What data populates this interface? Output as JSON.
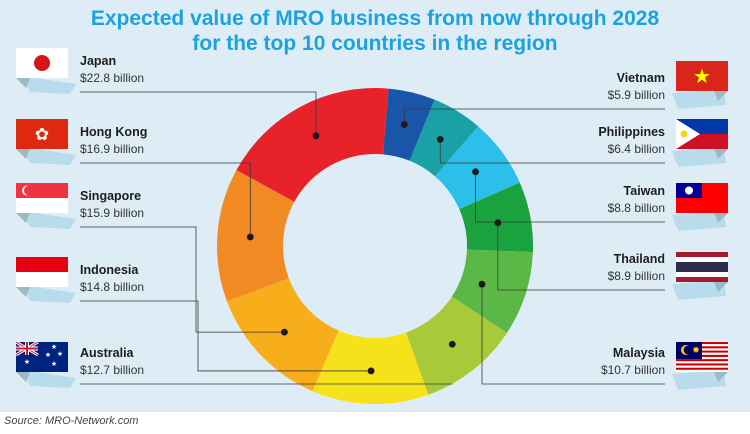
{
  "header": {
    "title_line1": "Expected value of MRO business from now through 2028",
    "title_line2": "for the top 10 countries in the region"
  },
  "footer": {
    "source": "Source: MRO-Network.com"
  },
  "colors": {
    "title": "#1ba3dd",
    "background": "#deedf5",
    "slices": [
      "#e8222a",
      "#1a56a7",
      "#1aa1a5",
      "#2bbfe9",
      "#1aa23f",
      "#5bb846",
      "#a8c93a",
      "#f6e21a",
      "#f8ad1a",
      "#f18a23",
      "#f26a24"
    ]
  },
  "chart_data": {
    "type": "pie",
    "donut": true,
    "title": "Expected value of MRO business from now through 2028 for the top 10 countries in the region",
    "unit": "billion USD",
    "slices": [
      {
        "label": "Japan",
        "value": 22.8,
        "display": "$22.8 billion",
        "color": "#e8222a",
        "flag": "japan-flag-icon",
        "side": "left"
      },
      {
        "label": "Vietnam",
        "value": 5.9,
        "display": "$5.9 billion",
        "color": "#1a56a7",
        "flag": "vietnam-flag-icon",
        "side": "right"
      },
      {
        "label": "Philippines",
        "value": 6.4,
        "display": "$6.4 billion",
        "color": "#1aa1a5",
        "flag": "philippines-flag-icon",
        "side": "right"
      },
      {
        "label": "Taiwan",
        "value": 8.8,
        "display": "$8.8 billion",
        "color": "#2bbfe9",
        "flag": "taiwan-flag-icon",
        "side": "right"
      },
      {
        "label": "Thailand",
        "value": 8.9,
        "display": "$8.9 billion",
        "color": "#1aa23f",
        "flag": "thailand-flag-icon",
        "side": "right"
      },
      {
        "label": "Malaysia",
        "value": 10.7,
        "display": "$10.7 billion",
        "color": "#5bb846",
        "flag": "malaysia-flag-icon",
        "side": "right"
      },
      {
        "label": "Australia",
        "value": 12.7,
        "display": "$12.7 billion",
        "color": "#a8c93a",
        "flag": "australia-flag-icon",
        "side": "left"
      },
      {
        "label": "Indonesia",
        "value": 14.8,
        "display": "$14.8 billion",
        "color": "#f6e21a",
        "flag": "indonesia-flag-icon",
        "side": "left"
      },
      {
        "label": "Singapore",
        "value": 15.9,
        "display": "$15.9 billion",
        "color": "#f8ad1a",
        "flag": "singapore-flag-icon",
        "side": "left"
      },
      {
        "label": "Hong Kong",
        "value": 16.9,
        "display": "$16.9 billion",
        "color": "#f18a23",
        "flag": "hong-kong-flag-icon",
        "side": "left"
      }
    ]
  }
}
